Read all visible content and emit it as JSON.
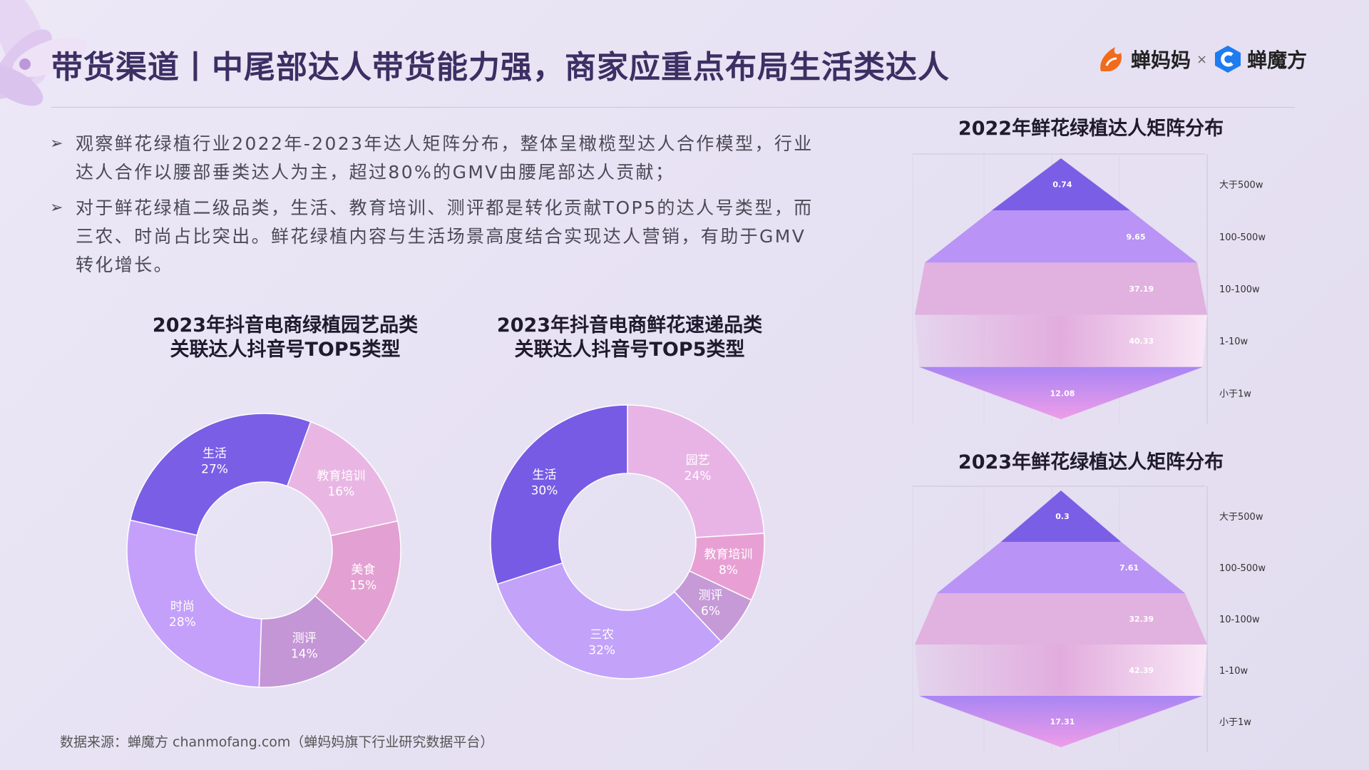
{
  "header": {
    "title": "带货渠道丨中尾部达人带货能力强，商家应重点布局生活类达人",
    "brand1": "蝉妈妈",
    "brand_sep": "×",
    "brand2": "蝉魔方"
  },
  "bullets": [
    "观察鲜花绿植行业2022年-2023年达人矩阵分布，整体呈橄榄型达人合作模型，行业达人合作以腰部垂类达人为主，超过80%的GMV由腰尾部达人贡献；",
    "对于鲜花绿植二级品类，生活、教育培训、测评都是转化贡献TOP5的达人号类型，而三农、时尚占比突出。鲜花绿植内容与生活场景高度结合实现达人营销，有助于GMV转化增长。"
  ],
  "source": "数据来源：蝉魔方   chanmofang.com（蝉妈妈旗下行业研究数据平台）",
  "chart_data": [
    {
      "type": "pie",
      "title": [
        "2023年抖音电商绿植园艺品类",
        "关联达人抖音号TOP5类型"
      ],
      "categories": [
        "教育培训",
        "美食",
        "测评",
        "时尚",
        "生活"
      ],
      "values": [
        16,
        15,
        14,
        28,
        27
      ],
      "value_labels": [
        "16%",
        "15%",
        "14%",
        "28%",
        "27%"
      ],
      "colors": [
        "#e9b6e4",
        "#e3a0d2",
        "#c496d6",
        "#c4a0fb",
        "#7a5ee6"
      ]
    },
    {
      "type": "pie",
      "title": [
        "2023年抖音电商鲜花速递品类",
        "关联达人抖音号TOP5类型"
      ],
      "categories": [
        "园艺",
        "教育培训",
        "测评",
        "三农",
        "生活"
      ],
      "values": [
        24,
        8,
        6,
        32,
        30
      ],
      "value_labels": [
        "24%",
        "8%",
        "6%",
        "32%",
        "30%"
      ],
      "colors": [
        "#e8b4e6",
        "#e8a0d4",
        "#c59ad6",
        "#c3a2fa",
        "#775be4"
      ]
    },
    {
      "type": "bar",
      "title": "2022年鲜花绿植达人矩阵分布",
      "categories": [
        "大于500w",
        "100-500w",
        "10-100w",
        "1-10w",
        "小于1w"
      ],
      "values": [
        0.74,
        9.65,
        37.19,
        40.33,
        12.08
      ]
    },
    {
      "type": "bar",
      "title": "2023年鲜花绿植达人矩阵分布",
      "categories": [
        "大于500w",
        "100-500w",
        "10-100w",
        "1-10w",
        "小于1w"
      ],
      "values": [
        0.3,
        7.61,
        32.39,
        42.39,
        17.31
      ]
    }
  ]
}
